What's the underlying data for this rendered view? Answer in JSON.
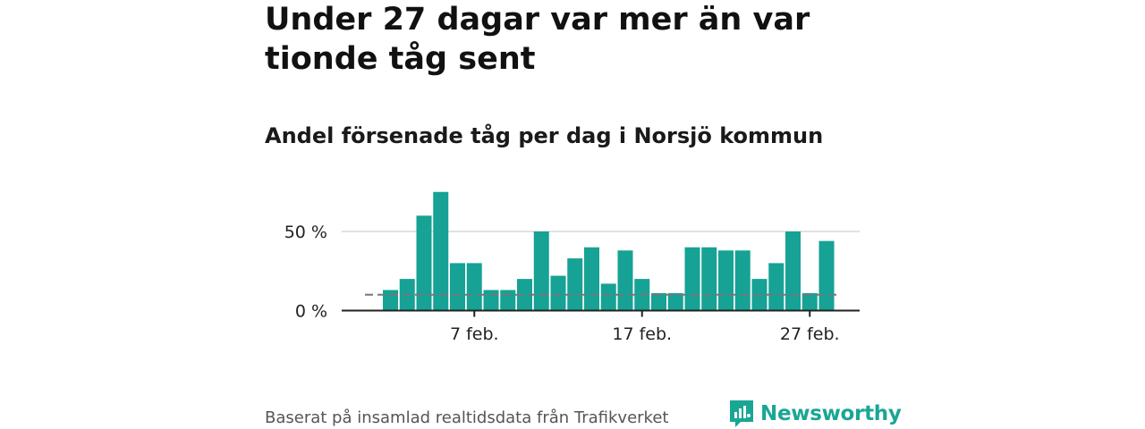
{
  "title": "Under 27 dagar var mer än var tionde tåg sent",
  "subtitle": "Andel försenade tåg per dag i Norsjö kommun",
  "source": "Baserat på insamlad realtidsdata från Trafikverket",
  "brand": {
    "name": "Newsworthy",
    "color": "#1aa695"
  },
  "colors": {
    "bar": "#16a295",
    "gridline": "#d9d9d9",
    "axis": "#222222",
    "reference": "#777777"
  },
  "chart_data": {
    "type": "bar",
    "title": "Andel försenade tåg per dag i Norsjö kommun",
    "xlabel": "",
    "ylabel": "",
    "unit": "%",
    "ylim": [
      0,
      75
    ],
    "y_ticks": [
      {
        "value": 0,
        "label": "0 %"
      },
      {
        "value": 50,
        "label": "50 %"
      }
    ],
    "x_ticks": [
      {
        "category": "7",
        "label": "7 feb."
      },
      {
        "category": "17",
        "label": "17 feb."
      },
      {
        "category": "27",
        "label": "27 feb."
      }
    ],
    "reference_line": 10,
    "categories": [
      "2",
      "3",
      "4",
      "5",
      "6",
      "7",
      "8",
      "9",
      "10",
      "11",
      "12",
      "13",
      "14",
      "15",
      "16",
      "17",
      "18",
      "19",
      "20",
      "21",
      "22",
      "23",
      "24",
      "25",
      "26",
      "27",
      "28"
    ],
    "values": [
      13,
      20,
      60,
      75,
      30,
      30,
      13,
      13,
      20,
      50,
      22,
      33,
      40,
      17,
      38,
      20,
      11,
      11,
      40,
      40,
      38,
      38,
      20,
      30,
      50,
      11,
      44
    ]
  }
}
